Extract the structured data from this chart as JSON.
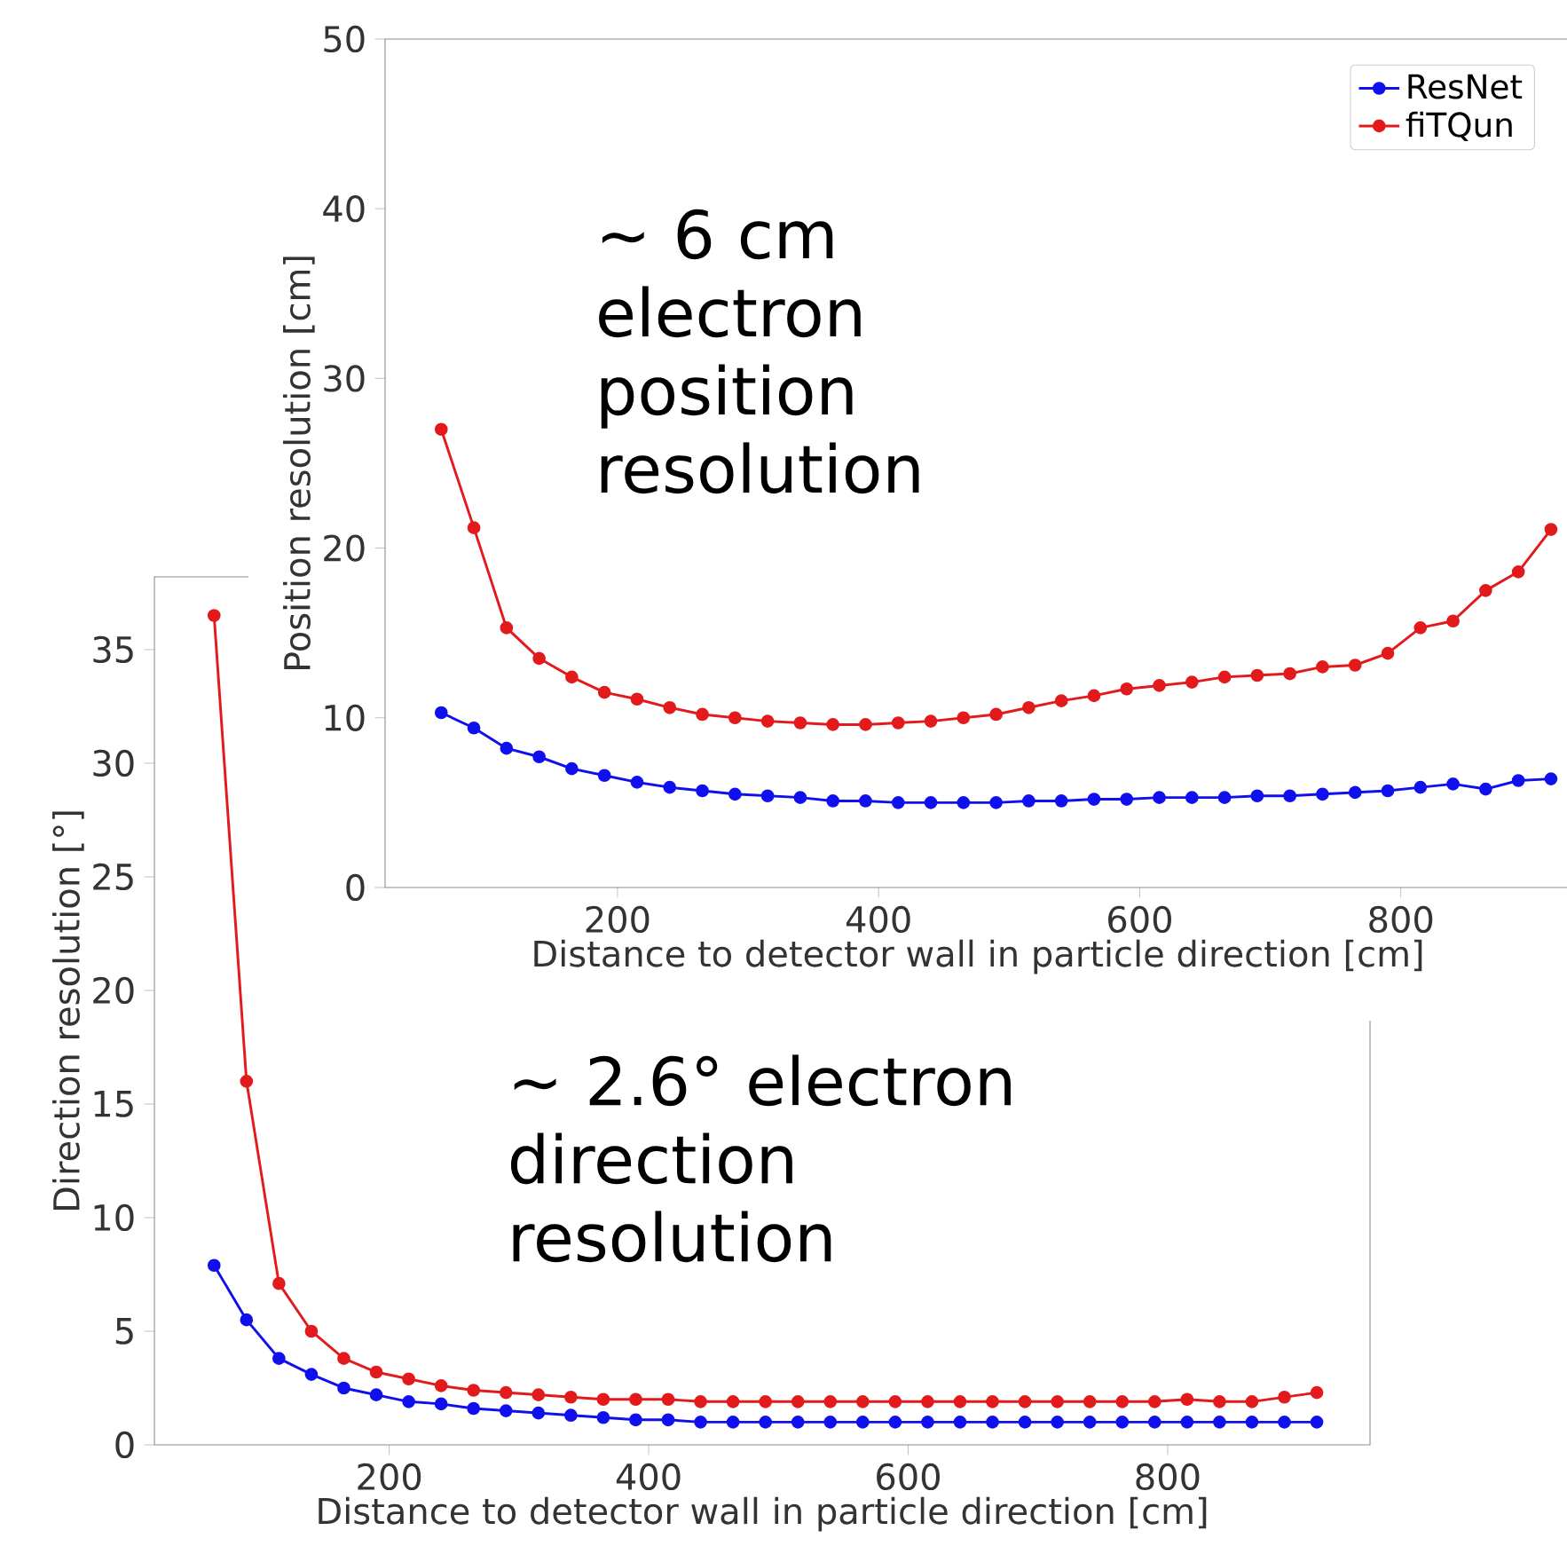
{
  "chart_data": [
    {
      "type": "line",
      "xlabel": "Distance to detector wall in particle direction [cm]",
      "ylabel": "Position resolution [cm]",
      "x": [
        65,
        90,
        115,
        140,
        165,
        190,
        215,
        240,
        265,
        290,
        315,
        340,
        365,
        390,
        415,
        440,
        465,
        490,
        515,
        540,
        565,
        590,
        615,
        640,
        665,
        690,
        715,
        740,
        765,
        790,
        815,
        840,
        865,
        890,
        915
      ],
      "series": [
        {
          "name": "ResNet",
          "color": "#1010ee",
          "values": [
            10.3,
            9.4,
            8.2,
            7.7,
            7.0,
            6.6,
            6.2,
            5.9,
            5.7,
            5.5,
            5.4,
            5.3,
            5.1,
            5.1,
            5.0,
            5.0,
            5.0,
            5.0,
            5.1,
            5.1,
            5.2,
            5.2,
            5.3,
            5.3,
            5.3,
            5.4,
            5.4,
            5.5,
            5.6,
            5.7,
            5.9,
            6.1,
            5.8,
            6.3,
            6.4
          ]
        },
        {
          "name": "fiTQun",
          "color": "#e31a1c",
          "values": [
            27.0,
            21.2,
            15.3,
            13.5,
            12.4,
            11.5,
            11.1,
            10.6,
            10.2,
            10.0,
            9.8,
            9.7,
            9.6,
            9.6,
            9.7,
            9.8,
            10.0,
            10.2,
            10.6,
            11.0,
            11.3,
            11.7,
            11.9,
            12.1,
            12.4,
            12.5,
            12.6,
            13.0,
            13.1,
            13.8,
            15.3,
            15.7,
            17.5,
            18.6,
            21.1
          ]
        }
      ],
      "xlim": [
        22,
        930
      ],
      "ylim": [
        0,
        50
      ],
      "xticks": [
        200,
        400,
        600,
        800
      ],
      "yticks": [
        0,
        10,
        20,
        30,
        40,
        50
      ],
      "marker": "circle",
      "line_style": "solid",
      "legend": "top right",
      "annotations": [
        "~ 6 cm electron position resolution"
      ]
    },
    {
      "type": "line",
      "xlabel": "Distance to detector wall in particle direction [cm]",
      "ylabel": "Direction resolution [°]",
      "x": [
        65,
        90,
        115,
        140,
        165,
        190,
        215,
        240,
        265,
        290,
        315,
        340,
        365,
        390,
        415,
        440,
        465,
        490,
        515,
        540,
        565,
        590,
        615,
        640,
        665,
        690,
        715,
        740,
        765,
        790,
        815,
        840,
        865,
        890,
        915
      ],
      "series": [
        {
          "color": "#1010ee",
          "values": [
            7.9,
            5.5,
            3.8,
            3.1,
            2.5,
            2.2,
            1.9,
            1.8,
            1.6,
            1.5,
            1.4,
            1.3,
            1.2,
            1.1,
            1.1,
            1.0,
            1.0,
            1.0,
            1.0,
            1.0,
            1.0,
            1.0,
            1.0,
            1.0,
            1.0,
            1.0,
            1.0,
            1.0,
            1.0,
            1.0,
            1.0,
            1.0,
            1.0,
            1.0,
            1.0
          ]
        },
        {
          "color": "#e31a1c",
          "values": [
            36.5,
            16.0,
            7.1,
            5.0,
            3.8,
            3.2,
            2.9,
            2.6,
            2.4,
            2.3,
            2.2,
            2.1,
            2.0,
            2.0,
            2.0,
            1.9,
            1.9,
            1.9,
            1.9,
            1.9,
            1.9,
            1.9,
            1.9,
            1.9,
            1.9,
            1.9,
            1.9,
            1.9,
            1.9,
            1.9,
            2.0,
            1.9,
            1.9,
            2.1,
            2.3
          ]
        }
      ],
      "xlim": [
        19,
        956
      ],
      "ylim": [
        0,
        38.2
      ],
      "xticks": [
        200,
        400,
        600,
        800
      ],
      "yticks": [
        0,
        5,
        10,
        15,
        20,
        25,
        30,
        35
      ],
      "marker": "circle",
      "line_style": "solid",
      "annotations": [
        "~ 2.6° electron direction resolution"
      ]
    }
  ]
}
